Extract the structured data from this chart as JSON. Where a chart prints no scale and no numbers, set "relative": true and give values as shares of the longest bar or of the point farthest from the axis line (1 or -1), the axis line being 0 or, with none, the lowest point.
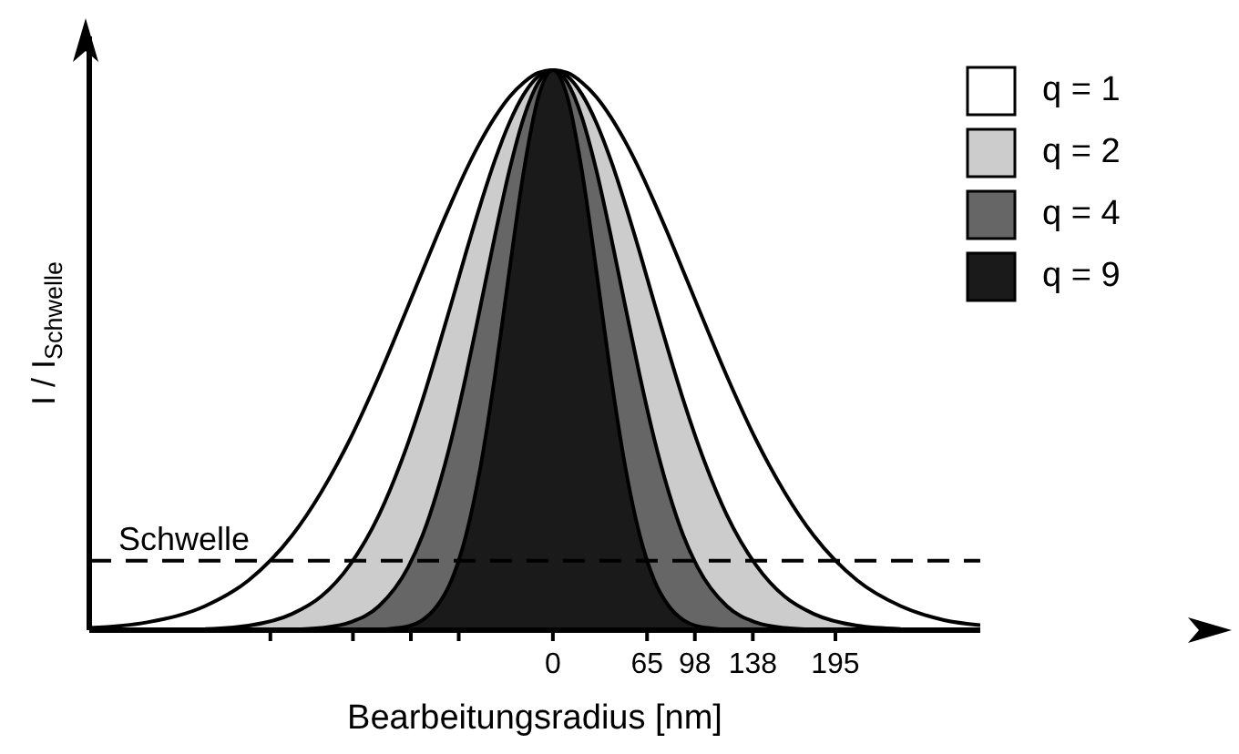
{
  "chart_data": {
    "type": "area",
    "relative": true,
    "xlabel": "Bearbeitungsradius [nm]",
    "ylabel": "I / I$_{Schwelle}$",
    "x": [
      -320,
      -280,
      -240,
      -210,
      -180,
      -160,
      -140,
      -120,
      -100,
      -90,
      -80,
      -70,
      -60,
      -50,
      -40,
      -30,
      -20,
      -10,
      0,
      10,
      20,
      30,
      40,
      50,
      60,
      70,
      80,
      90,
      100,
      120,
      140,
      160,
      180,
      210,
      240,
      270,
      295
    ],
    "series": [
      {
        "name": "q = 1",
        "color": "#ffffff",
        "values": [
          0.004,
          0.014,
          0.043,
          0.089,
          0.169,
          0.246,
          0.341,
          0.454,
          0.578,
          0.641,
          0.704,
          0.764,
          0.821,
          0.872,
          0.916,
          0.952,
          0.978,
          0.995,
          1,
          0.995,
          0.978,
          0.952,
          0.916,
          0.872,
          0.821,
          0.764,
          0.704,
          0.641,
          0.578,
          0.454,
          0.341,
          0.246,
          0.169,
          0.089,
          0.043,
          0.018,
          0.009
        ]
      },
      {
        "name": "q = 2",
        "color": "#cccccc",
        "x": [
          -240,
          -210,
          -180,
          -160,
          -140,
          -120,
          -100,
          -90,
          -80,
          -70,
          -60,
          -50,
          -40,
          -30,
          -20,
          -10,
          0,
          10,
          20,
          30,
          40,
          50,
          60,
          70,
          80,
          90,
          100,
          120,
          140,
          160,
          180,
          210,
          240
        ],
        "values": [
          0.002,
          0.008,
          0.029,
          0.06,
          0.117,
          0.206,
          0.334,
          0.411,
          0.496,
          0.584,
          0.674,
          0.76,
          0.839,
          0.906,
          0.957,
          0.989,
          1,
          0.989,
          0.957,
          0.906,
          0.839,
          0.76,
          0.674,
          0.584,
          0.496,
          0.411,
          0.334,
          0.206,
          0.117,
          0.06,
          0.029,
          0.008,
          0.002
        ]
      },
      {
        "name": "q = 4",
        "color": "#666666",
        "x": [
          -180,
          -160,
          -140,
          -120,
          -100,
          -90,
          -80,
          -70,
          -60,
          -50,
          -40,
          -30,
          -20,
          -10,
          0,
          10,
          20,
          30,
          40,
          50,
          60,
          70,
          80,
          90,
          100,
          120,
          140,
          160,
          180
        ],
        "values": [
          0.001,
          0.004,
          0.014,
          0.043,
          0.112,
          0.169,
          0.246,
          0.341,
          0.454,
          0.578,
          0.704,
          0.821,
          0.916,
          0.978,
          1,
          0.978,
          0.916,
          0.821,
          0.704,
          0.578,
          0.454,
          0.341,
          0.246,
          0.169,
          0.112,
          0.043,
          0.014,
          0.004,
          0.001
        ]
      },
      {
        "name": "q = 9",
        "color": "#1a1a1a",
        "x": [
          -120,
          -100,
          -90,
          -80,
          -70,
          -60,
          -50,
          -40,
          -30,
          -20,
          -10,
          0,
          10,
          20,
          30,
          40,
          50,
          60,
          70,
          80,
          90,
          100,
          120
        ],
        "values": [
          0.001,
          0.007,
          0.018,
          0.043,
          0.089,
          0.169,
          0.291,
          0.454,
          0.642,
          0.821,
          0.952,
          1,
          0.952,
          0.821,
          0.642,
          0.454,
          0.291,
          0.169,
          0.089,
          0.043,
          0.018,
          0.007,
          0.001
        ]
      }
    ],
    "xlim": [
      -320,
      295
    ],
    "xticks": [
      {
        "value": -195,
        "label": null
      },
      {
        "value": -138,
        "label": null
      },
      {
        "value": -98,
        "label": null
      },
      {
        "value": -65,
        "label": null
      },
      0,
      65,
      98,
      138,
      195
    ],
    "ref_lines": [
      {
        "axis": "y",
        "value": 0.124,
        "label": "Schwelle",
        "line_style": "dashed",
        "color": "#000000"
      }
    ],
    "grid": false,
    "legend": "top right",
    "marker": "none",
    "line_style": "solid"
  }
}
